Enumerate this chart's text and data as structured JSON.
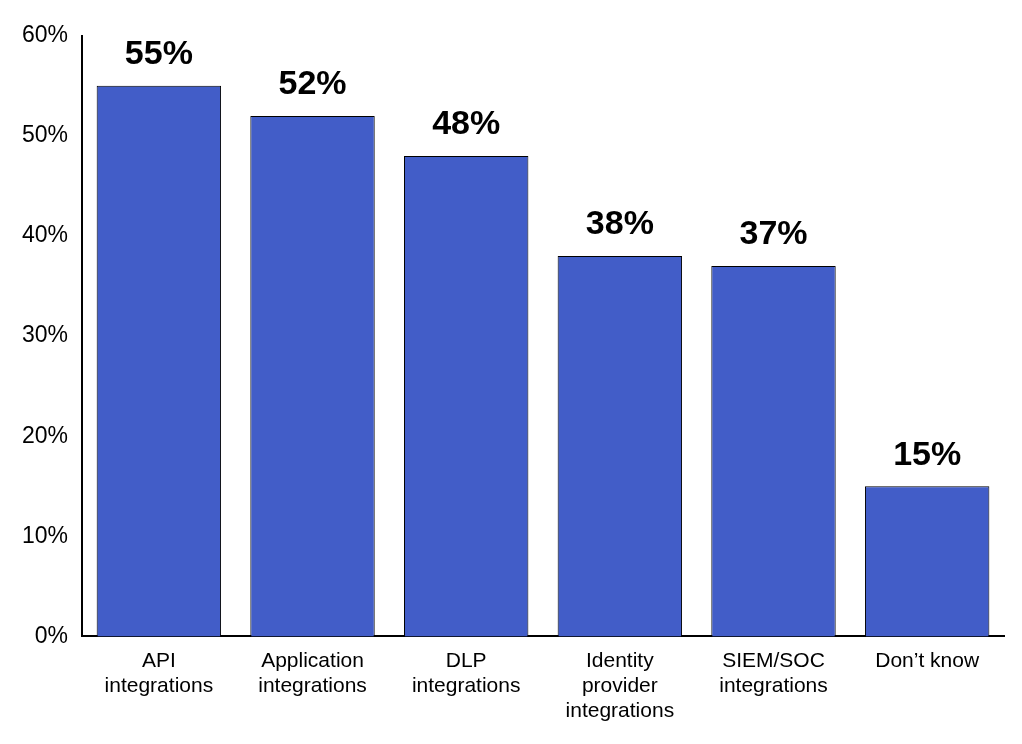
{
  "chart_data": {
    "type": "bar",
    "categories": [
      "API integrations",
      "Application integrations",
      "DLP integrations",
      "Identity provider integrations",
      "SIEM/SOC integrations",
      "Don’t know"
    ],
    "values": [
      55,
      52,
      48,
      38,
      37,
      15
    ],
    "value_labels": [
      "55%",
      "52%",
      "48%",
      "38%",
      "37%",
      "15%"
    ],
    "color": "#425dc8",
    "ylim": [
      0,
      60
    ],
    "yticks": [
      {
        "value": 0,
        "label": "0%"
      },
      {
        "value": 10,
        "label": "10%"
      },
      {
        "value": 20,
        "label": "20%"
      },
      {
        "value": 30,
        "label": "30%"
      },
      {
        "value": 40,
        "label": "40%"
      },
      {
        "value": 50,
        "label": "50%"
      },
      {
        "value": 60,
        "label": "60%"
      }
    ],
    "grid": false,
    "legend": false
  }
}
